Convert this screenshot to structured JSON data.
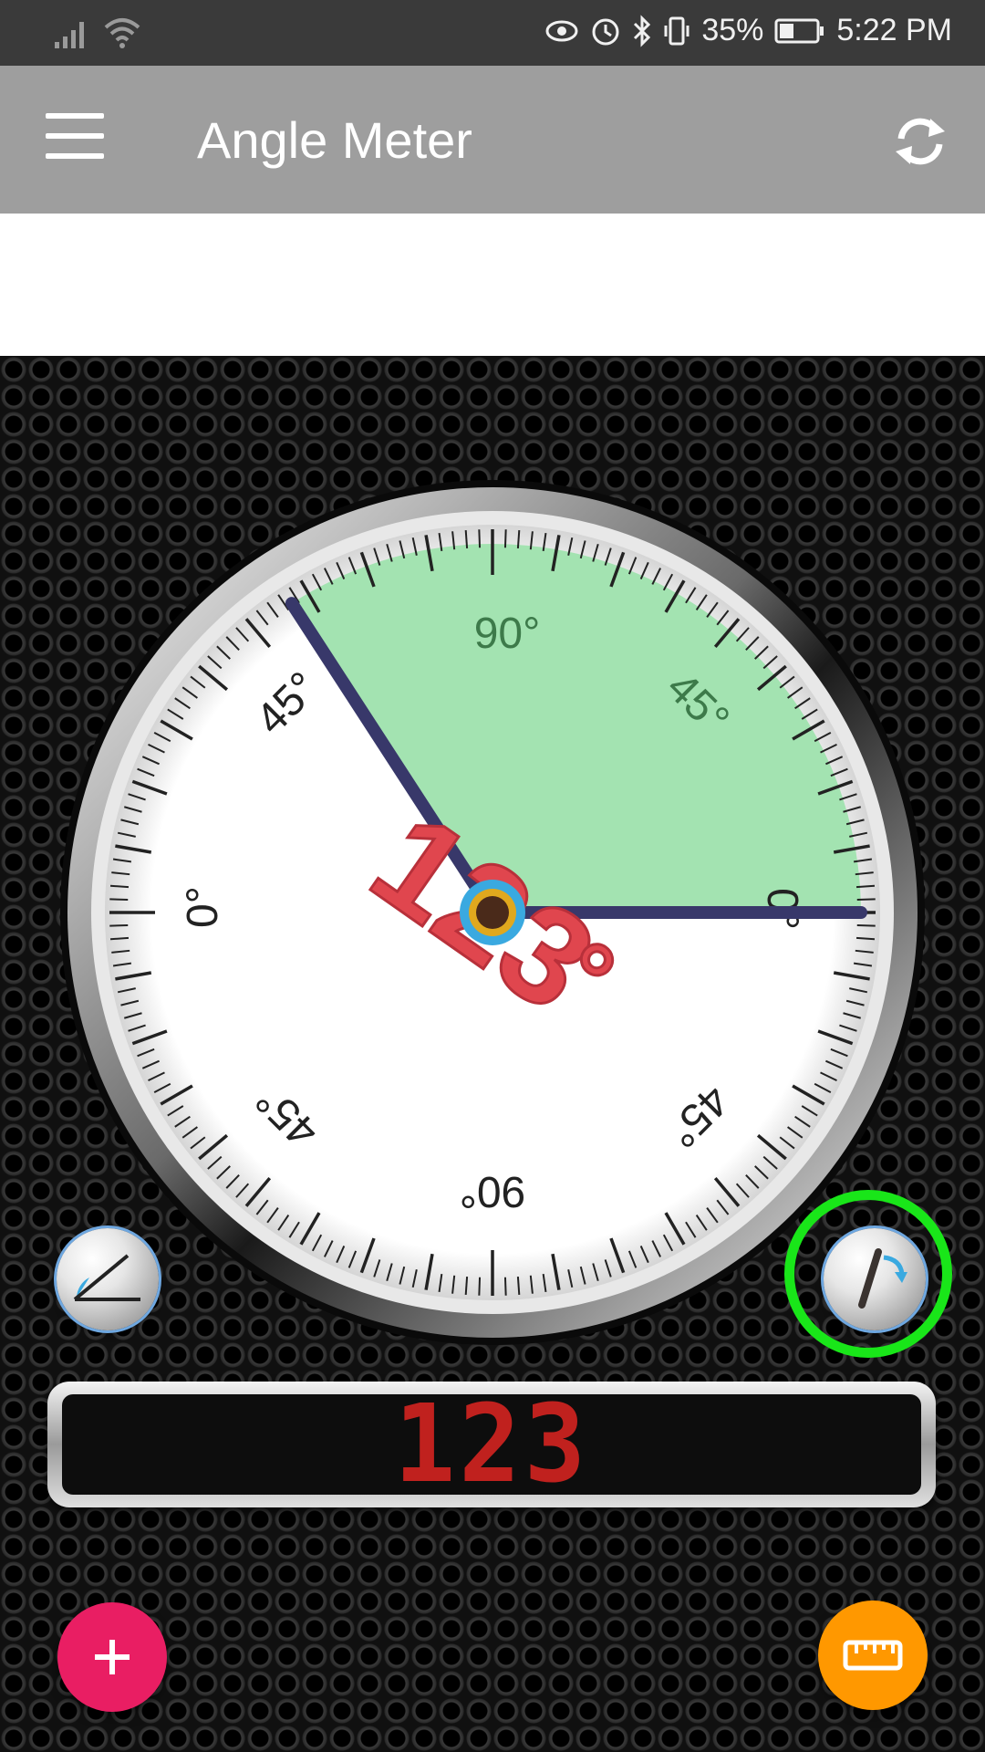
{
  "status_bar": {
    "battery_percent": "35%",
    "time": "5:22 PM",
    "icons": [
      "signal-icon",
      "wifi-icon",
      "eye-icon",
      "alarm-icon",
      "bluetooth-icon",
      "vibrate-icon",
      "battery-icon"
    ]
  },
  "app_bar": {
    "title": "Angle Meter",
    "menu_icon": "hamburger-menu-icon",
    "refresh_icon": "refresh-icon"
  },
  "gauge": {
    "angle_value": 123,
    "angle_label": "123",
    "degree_symbol": "°",
    "scale_labels": {
      "top": "90°",
      "upper_left": "45°",
      "upper_right": "45°",
      "left": "0°",
      "right": "0°",
      "lower_left": "45°",
      "lower_right": "45°",
      "bottom": "90°"
    },
    "colors": {
      "sector": "#a3e3b1",
      "needle": "#38386a",
      "angle_text": "#e0464e",
      "pivot": "#3aa9e0"
    }
  },
  "digital_readout": {
    "value": "123",
    "color": "#c0211e"
  },
  "buttons": {
    "angle_mode_icon": "angle-icon",
    "rotate_icon": "rotate-arrow-icon",
    "add_icon": "plus-icon",
    "ruler_icon": "ruler-icon",
    "highlight_color": "#19e619",
    "add_color": "#e91e63",
    "ruler_color": "#ff9800"
  }
}
